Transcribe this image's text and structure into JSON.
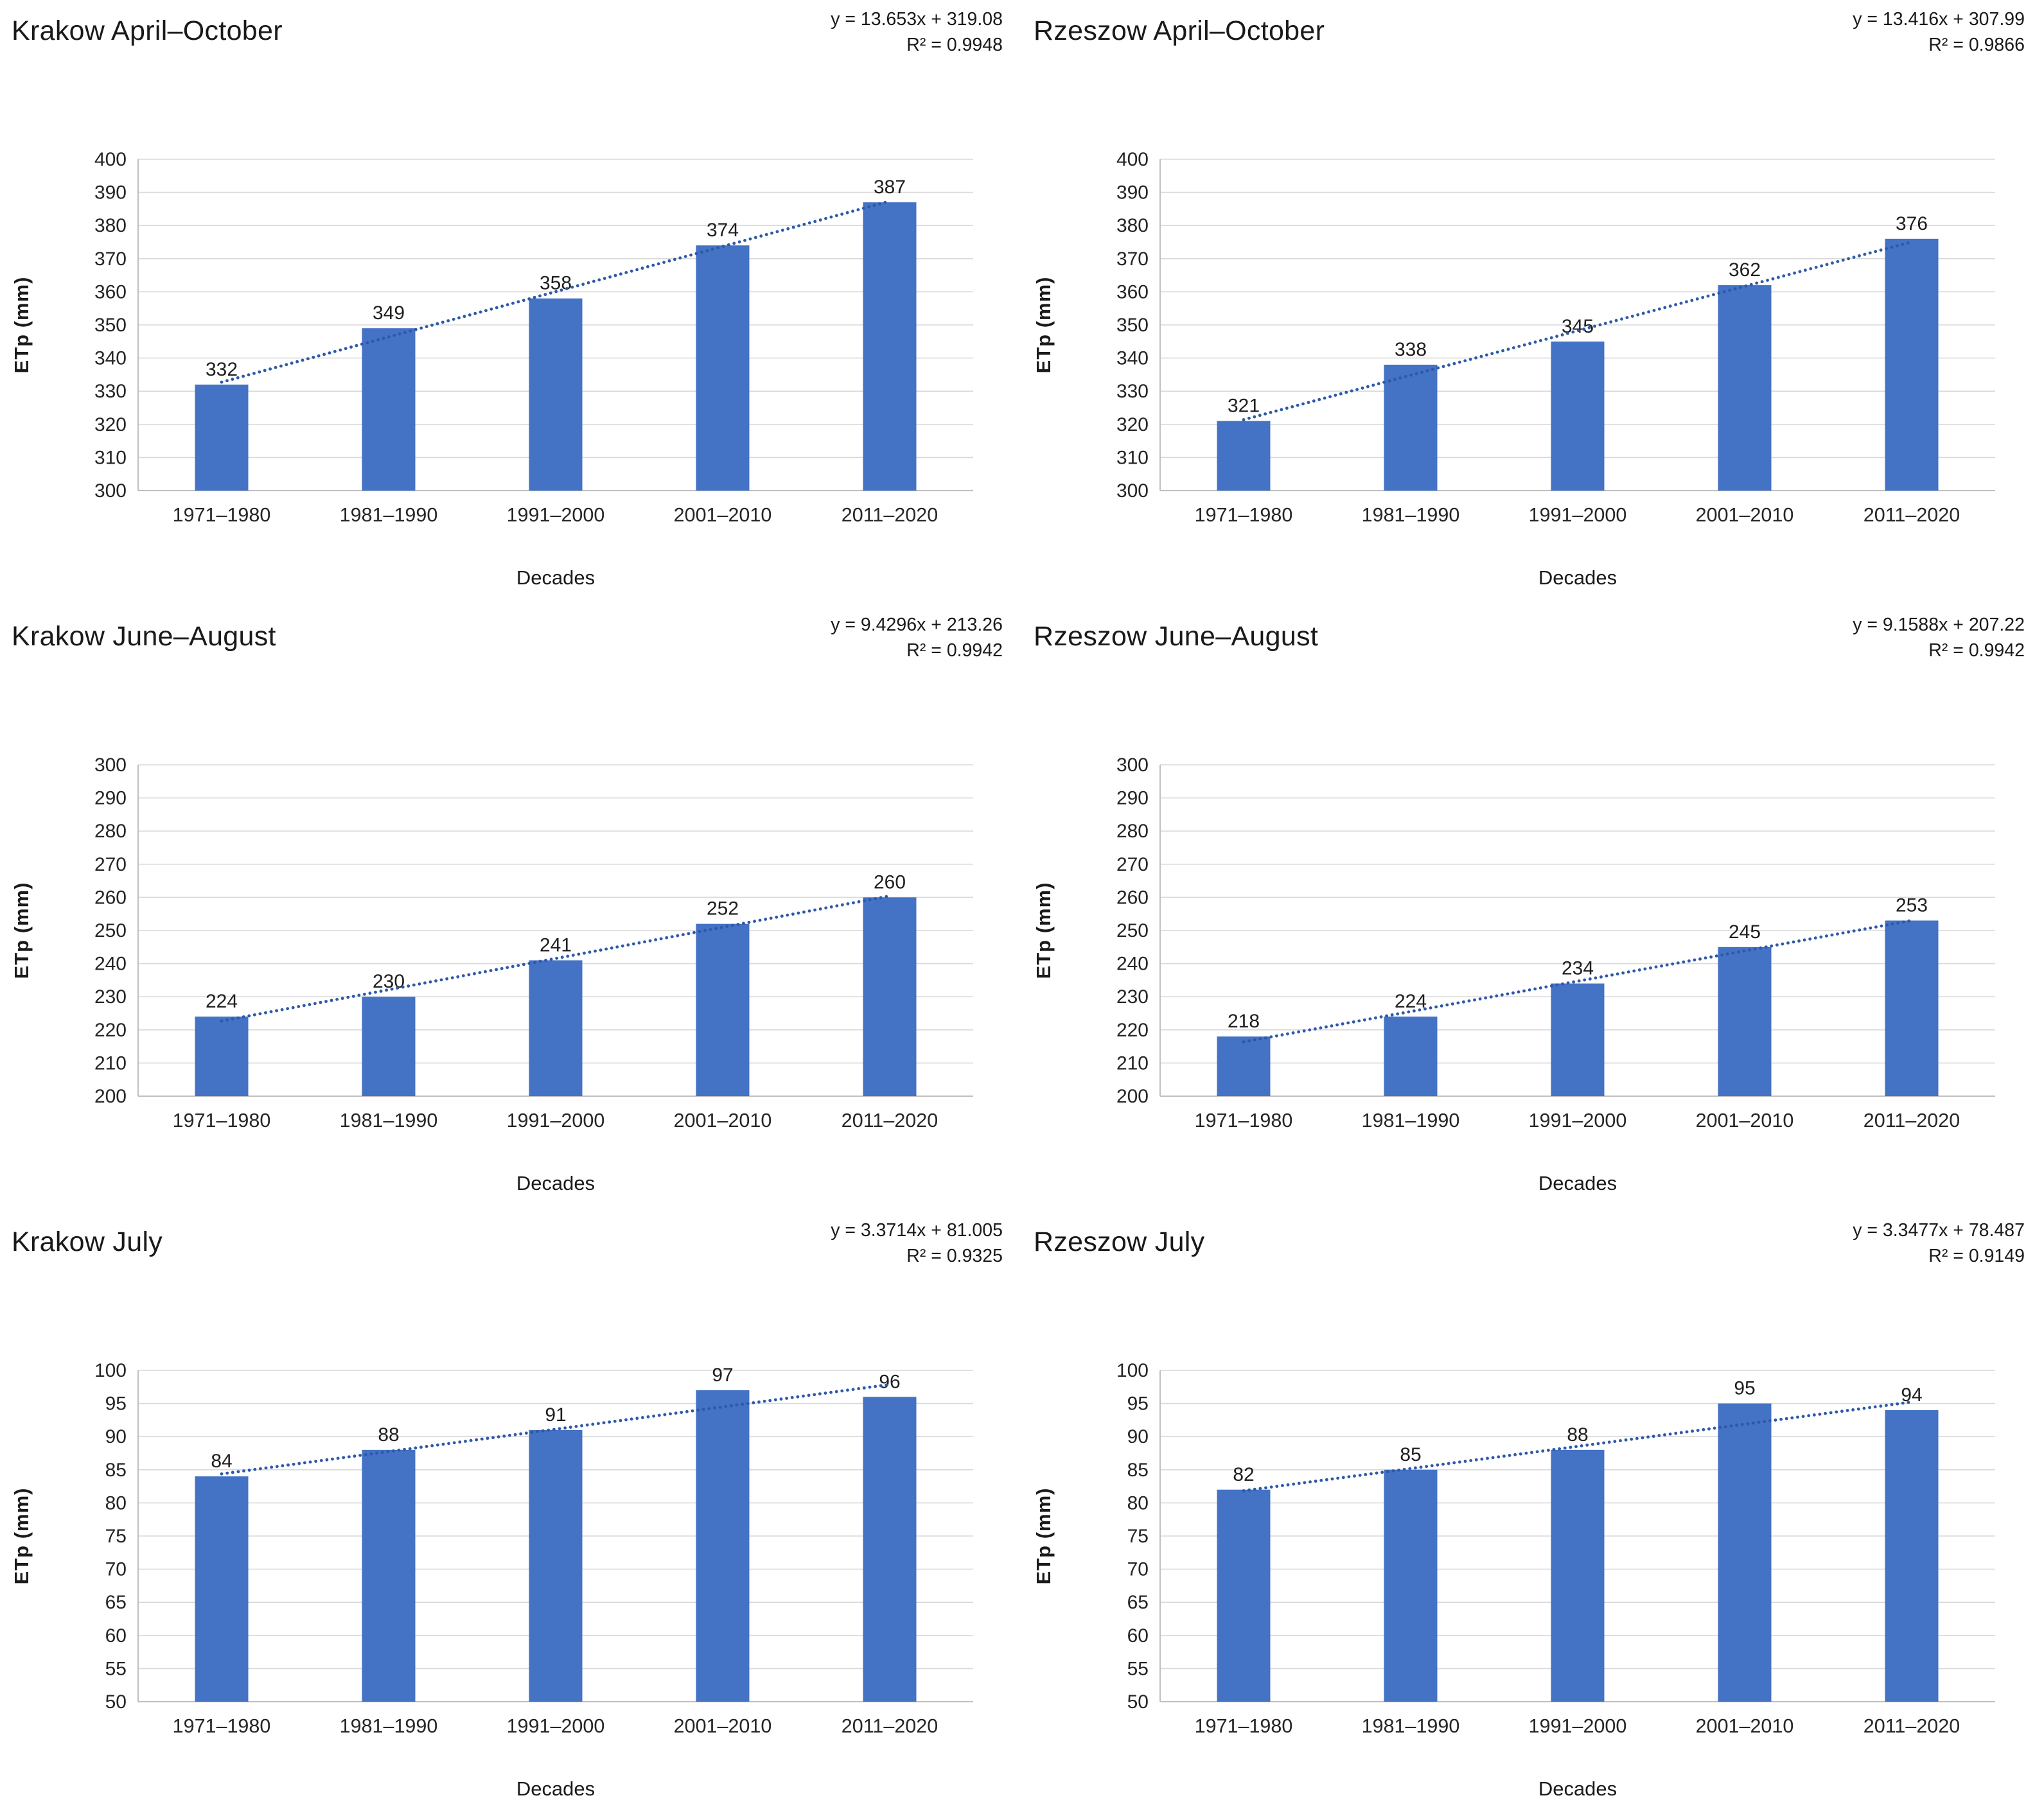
{
  "styles": {
    "bar_color": "#4472C4",
    "trend_color": "#2E59A9",
    "grid_color": "#D9D9D9",
    "axis_color": "#BFBFBF",
    "text_color": "#262626"
  },
  "chart_data": [
    {
      "type": "bar",
      "title": "Krakow April–October",
      "equation": "y = 13.653x + 319.08",
      "r_squared": "R² = 0.9948",
      "slope": 13.653,
      "intercept": 319.08,
      "categories": [
        "1971–1980",
        "1981–1990",
        "1991–2000",
        "2001–2010",
        "2011–2020"
      ],
      "values": [
        332,
        349,
        358,
        374,
        387
      ],
      "xlabel": "Decades",
      "ylabel": "ETp (mm)",
      "ylim": [
        300,
        400
      ],
      "yticks": [
        300,
        310,
        320,
        330,
        340,
        350,
        360,
        370,
        380,
        390,
        400
      ],
      "grid": true,
      "legend": "none",
      "trendline": "dotted"
    },
    {
      "type": "bar",
      "title": "Rzeszow April–October",
      "equation": "y = 13.416x + 307.99",
      "r_squared": "R² = 0.9866",
      "slope": 13.416,
      "intercept": 307.99,
      "categories": [
        "1971–1980",
        "1981–1990",
        "1991–2000",
        "2001–2010",
        "2011–2020"
      ],
      "values": [
        321,
        338,
        345,
        362,
        376
      ],
      "xlabel": "Decades",
      "ylabel": "ETp (mm)",
      "ylim": [
        300,
        400
      ],
      "yticks": [
        300,
        310,
        320,
        330,
        340,
        350,
        360,
        370,
        380,
        390,
        400
      ],
      "grid": true,
      "legend": "none",
      "trendline": "dotted"
    },
    {
      "type": "bar",
      "title": "Krakow June–August",
      "equation": "y = 9.4296x + 213.26",
      "r_squared": "R² = 0.9942",
      "slope": 9.4296,
      "intercept": 213.26,
      "categories": [
        "1971–1980",
        "1981–1990",
        "1991–2000",
        "2001–2010",
        "2011–2020"
      ],
      "values": [
        224,
        230,
        241,
        252,
        260
      ],
      "xlabel": "Decades",
      "ylabel": "ETp (mm)",
      "ylim": [
        200,
        300
      ],
      "yticks": [
        200,
        210,
        220,
        230,
        240,
        250,
        260,
        270,
        280,
        290,
        300
      ],
      "grid": true,
      "legend": "none",
      "trendline": "dotted"
    },
    {
      "type": "bar",
      "title": "Rzeszow June–August",
      "equation": "y = 9.1588x + 207.22",
      "r_squared": "R² = 0.9942",
      "slope": 9.1588,
      "intercept": 207.22,
      "categories": [
        "1971–1980",
        "1981–1990",
        "1991–2000",
        "2001–2010",
        "2011–2020"
      ],
      "values": [
        218,
        224,
        234,
        245,
        253
      ],
      "xlabel": "Decades",
      "ylabel": "ETp (mm)",
      "ylim": [
        200,
        300
      ],
      "yticks": [
        200,
        210,
        220,
        230,
        240,
        250,
        260,
        270,
        280,
        290,
        300
      ],
      "grid": true,
      "legend": "none",
      "trendline": "dotted"
    },
    {
      "type": "bar",
      "title": "Krakow July",
      "equation": "y = 3.3714x + 81.005",
      "r_squared": "R² = 0.9325",
      "slope": 3.3714,
      "intercept": 81.005,
      "categories": [
        "1971–1980",
        "1981–1990",
        "1991–2000",
        "2001–2010",
        "2011–2020"
      ],
      "values": [
        84,
        88,
        91,
        97,
        96
      ],
      "xlabel": "Decades",
      "ylabel": "ETp (mm)",
      "ylim": [
        50,
        100
      ],
      "yticks": [
        50,
        55,
        60,
        65,
        70,
        75,
        80,
        85,
        90,
        95,
        100
      ],
      "grid": true,
      "legend": "none",
      "trendline": "dotted"
    },
    {
      "type": "bar",
      "title": "Rzeszow July",
      "equation": "y = 3.3477x + 78.487",
      "r_squared": "R² = 0.9149",
      "slope": 3.3477,
      "intercept": 78.487,
      "categories": [
        "1971–1980",
        "1981–1990",
        "1991–2000",
        "2001–2010",
        "2011–2020"
      ],
      "values": [
        82,
        85,
        88,
        95,
        94
      ],
      "xlabel": "Decades",
      "ylabel": "ETp (mm)",
      "ylim": [
        50,
        100
      ],
      "yticks": [
        50,
        55,
        60,
        65,
        70,
        75,
        80,
        85,
        90,
        95,
        100
      ],
      "grid": true,
      "legend": "none",
      "trendline": "dotted"
    }
  ]
}
